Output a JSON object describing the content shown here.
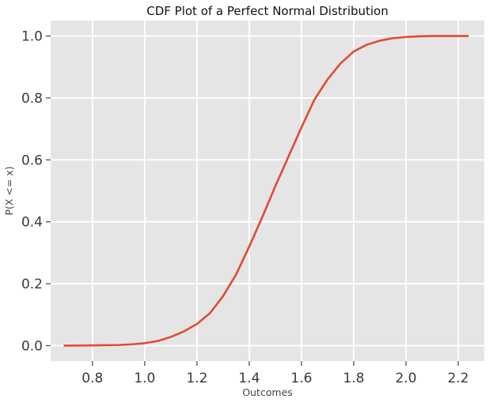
{
  "chart_data": {
    "type": "line",
    "title": "CDF Plot of a Perfect Normal Distribution",
    "xlabel": "Outcomes",
    "ylabel": "P(X <= x)",
    "xlim": [
      0.64,
      2.3
    ],
    "ylim": [
      -0.05,
      1.05
    ],
    "x_ticks": [
      "0.8",
      "1.0",
      "1.2",
      "1.4",
      "1.6",
      "1.8",
      "2.0",
      "2.2"
    ],
    "y_ticks": [
      "0.0",
      "0.2",
      "0.4",
      "0.6",
      "0.8",
      "1.0"
    ],
    "grid": true,
    "colors": {
      "background": "#e5e5e5",
      "grid": "#ffffff",
      "line": "#e24a33"
    },
    "series": [
      {
        "x": [
          0.69,
          0.8,
          0.9,
          0.95,
          1.0,
          1.05,
          1.1,
          1.15,
          1.2,
          1.25,
          1.3,
          1.35,
          1.4,
          1.45,
          1.5,
          1.55,
          1.6,
          1.65,
          1.7,
          1.75,
          1.8,
          1.85,
          1.9,
          1.95,
          2.0,
          2.05,
          2.1,
          2.15,
          2.24
        ],
        "y": [
          0.0,
          0.001,
          0.002,
          0.004,
          0.008,
          0.015,
          0.028,
          0.046,
          0.07,
          0.105,
          0.16,
          0.23,
          0.32,
          0.415,
          0.515,
          0.61,
          0.705,
          0.795,
          0.86,
          0.912,
          0.95,
          0.972,
          0.985,
          0.993,
          0.997,
          0.999,
          1.0,
          1.0,
          1.0
        ]
      }
    ]
  }
}
